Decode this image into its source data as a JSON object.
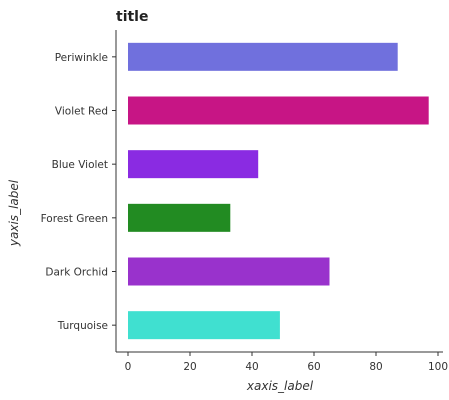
{
  "chart_data": {
    "type": "bar",
    "orientation": "horizontal",
    "title": "title",
    "xlabel": "xaxis_label",
    "ylabel": "yaxis_label",
    "xlim": [
      0,
      100
    ],
    "x_ticks": [
      0,
      20,
      40,
      60,
      80,
      100
    ],
    "x_tick_labels": [
      "0",
      "20",
      "40",
      "60",
      "80",
      "100"
    ],
    "categories": [
      "Turquoise",
      "Dark Orchid",
      "Forest Green",
      "Blue Violet",
      "Violet Red",
      "Periwinkle"
    ],
    "values": [
      49,
      65,
      33,
      42,
      97,
      87
    ],
    "colors": [
      "#40E0D0",
      "#9932CC",
      "#228B22",
      "#8A2BE2",
      "#C71585",
      "#7070DD"
    ],
    "grid": false,
    "legend": "none"
  }
}
